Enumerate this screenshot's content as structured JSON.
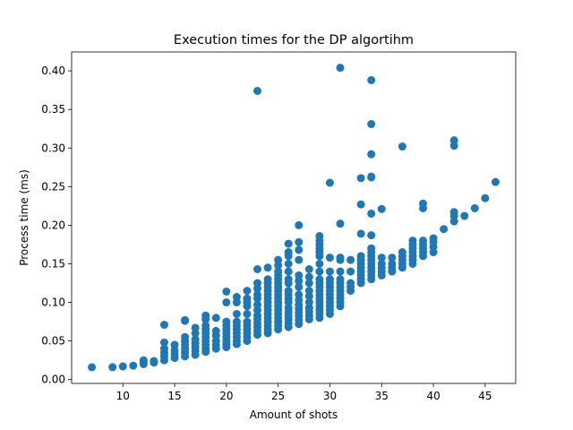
{
  "chart_data": {
    "type": "scatter",
    "title": "Execution times for the DP algortihm",
    "xlabel": "Amount of shots",
    "ylabel": "Process time (ms)",
    "xlim": [
      5.05,
      47.95
    ],
    "ylim": [
      -0.005,
      0.4245
    ],
    "xticks": [
      10,
      15,
      20,
      25,
      30,
      35,
      40,
      45
    ],
    "yticks": [
      0.0,
      0.05,
      0.1,
      0.15,
      0.2,
      0.25,
      0.3,
      0.35,
      0.4
    ],
    "grid": false,
    "marker_color": "#1f77b4",
    "points": [
      [
        7,
        0.016
      ],
      [
        9,
        0.016
      ],
      [
        10,
        0.017
      ],
      [
        11,
        0.018
      ],
      [
        12,
        0.02
      ],
      [
        12,
        0.022
      ],
      [
        12,
        0.025
      ],
      [
        13,
        0.022
      ],
      [
        13,
        0.024
      ],
      [
        14,
        0.025
      ],
      [
        14,
        0.03
      ],
      [
        14,
        0.035
      ],
      [
        14,
        0.04
      ],
      [
        14,
        0.048
      ],
      [
        14,
        0.071
      ],
      [
        15,
        0.028
      ],
      [
        15,
        0.033
      ],
      [
        15,
        0.038
      ],
      [
        15,
        0.045
      ],
      [
        16,
        0.03
      ],
      [
        16,
        0.035
      ],
      [
        16,
        0.04
      ],
      [
        16,
        0.045
      ],
      [
        16,
        0.05
      ],
      [
        16,
        0.055
      ],
      [
        16,
        0.076
      ],
      [
        16,
        0.077
      ],
      [
        17,
        0.032
      ],
      [
        17,
        0.037
      ],
      [
        17,
        0.042
      ],
      [
        17,
        0.047
      ],
      [
        17,
        0.052
      ],
      [
        17,
        0.06
      ],
      [
        17,
        0.067
      ],
      [
        18,
        0.036
      ],
      [
        18,
        0.04
      ],
      [
        18,
        0.045
      ],
      [
        18,
        0.05
      ],
      [
        18,
        0.055
      ],
      [
        18,
        0.06
      ],
      [
        18,
        0.065
      ],
      [
        18,
        0.07
      ],
      [
        18,
        0.078
      ],
      [
        18,
        0.083
      ],
      [
        19,
        0.04
      ],
      [
        19,
        0.045
      ],
      [
        19,
        0.05
      ],
      [
        19,
        0.057
      ],
      [
        19,
        0.063
      ],
      [
        19,
        0.08
      ],
      [
        20,
        0.042
      ],
      [
        20,
        0.046
      ],
      [
        20,
        0.05
      ],
      [
        20,
        0.055
      ],
      [
        20,
        0.06
      ],
      [
        20,
        0.065
      ],
      [
        20,
        0.07
      ],
      [
        20,
        0.075
      ],
      [
        20,
        0.1
      ],
      [
        20,
        0.114
      ],
      [
        21,
        0.046
      ],
      [
        21,
        0.05
      ],
      [
        21,
        0.055
      ],
      [
        21,
        0.06
      ],
      [
        21,
        0.065
      ],
      [
        21,
        0.07
      ],
      [
        21,
        0.075
      ],
      [
        21,
        0.085
      ],
      [
        21,
        0.1
      ],
      [
        21,
        0.107
      ],
      [
        22,
        0.05
      ],
      [
        22,
        0.055
      ],
      [
        22,
        0.06
      ],
      [
        22,
        0.065
      ],
      [
        22,
        0.07
      ],
      [
        22,
        0.075
      ],
      [
        22,
        0.085
      ],
      [
        22,
        0.095
      ],
      [
        22,
        0.1
      ],
      [
        22,
        0.105
      ],
      [
        22,
        0.115
      ],
      [
        23,
        0.058
      ],
      [
        23,
        0.063
      ],
      [
        23,
        0.068
      ],
      [
        23,
        0.073
      ],
      [
        23,
        0.078
      ],
      [
        23,
        0.083
      ],
      [
        23,
        0.09
      ],
      [
        23,
        0.097
      ],
      [
        23,
        0.105
      ],
      [
        23,
        0.11
      ],
      [
        23,
        0.118
      ],
      [
        23,
        0.125
      ],
      [
        23,
        0.143
      ],
      [
        23,
        0.374
      ],
      [
        24,
        0.06
      ],
      [
        24,
        0.065
      ],
      [
        24,
        0.07
      ],
      [
        24,
        0.075
      ],
      [
        24,
        0.08
      ],
      [
        24,
        0.085
      ],
      [
        24,
        0.09
      ],
      [
        24,
        0.095
      ],
      [
        24,
        0.1
      ],
      [
        24,
        0.105
      ],
      [
        24,
        0.11
      ],
      [
        24,
        0.115
      ],
      [
        24,
        0.12
      ],
      [
        24,
        0.125
      ],
      [
        24,
        0.13
      ],
      [
        24,
        0.145
      ],
      [
        25,
        0.065
      ],
      [
        25,
        0.07
      ],
      [
        25,
        0.075
      ],
      [
        25,
        0.08
      ],
      [
        25,
        0.085
      ],
      [
        25,
        0.09
      ],
      [
        25,
        0.095
      ],
      [
        25,
        0.1
      ],
      [
        25,
        0.105
      ],
      [
        25,
        0.11
      ],
      [
        25,
        0.115
      ],
      [
        25,
        0.12
      ],
      [
        25,
        0.125
      ],
      [
        25,
        0.13
      ],
      [
        25,
        0.135
      ],
      [
        25,
        0.14
      ],
      [
        25,
        0.148
      ],
      [
        25,
        0.155
      ],
      [
        26,
        0.068
      ],
      [
        26,
        0.073
      ],
      [
        26,
        0.078
      ],
      [
        26,
        0.083
      ],
      [
        26,
        0.088
      ],
      [
        26,
        0.093
      ],
      [
        26,
        0.1
      ],
      [
        26,
        0.105
      ],
      [
        26,
        0.11
      ],
      [
        26,
        0.115
      ],
      [
        26,
        0.125
      ],
      [
        26,
        0.13
      ],
      [
        26,
        0.14
      ],
      [
        26,
        0.15
      ],
      [
        26,
        0.16
      ],
      [
        26,
        0.165
      ],
      [
        26,
        0.176
      ],
      [
        27,
        0.072
      ],
      [
        27,
        0.077
      ],
      [
        27,
        0.082
      ],
      [
        27,
        0.087
      ],
      [
        27,
        0.092
      ],
      [
        27,
        0.097
      ],
      [
        27,
        0.103
      ],
      [
        27,
        0.11
      ],
      [
        27,
        0.12
      ],
      [
        27,
        0.128
      ],
      [
        27,
        0.135
      ],
      [
        27,
        0.155
      ],
      [
        27,
        0.168
      ],
      [
        27,
        0.178
      ],
      [
        27,
        0.2
      ],
      [
        28,
        0.078
      ],
      [
        28,
        0.083
      ],
      [
        28,
        0.088
      ],
      [
        28,
        0.093
      ],
      [
        28,
        0.1
      ],
      [
        28,
        0.108
      ],
      [
        28,
        0.115
      ],
      [
        28,
        0.125
      ],
      [
        28,
        0.133
      ],
      [
        28,
        0.143
      ],
      [
        29,
        0.08
      ],
      [
        29,
        0.085
      ],
      [
        29,
        0.09
      ],
      [
        29,
        0.095
      ],
      [
        29,
        0.1
      ],
      [
        29,
        0.105
      ],
      [
        29,
        0.11
      ],
      [
        29,
        0.115
      ],
      [
        29,
        0.12
      ],
      [
        29,
        0.125
      ],
      [
        29,
        0.13
      ],
      [
        29,
        0.14
      ],
      [
        29,
        0.15
      ],
      [
        29,
        0.16
      ],
      [
        29,
        0.165
      ],
      [
        29,
        0.17
      ],
      [
        29,
        0.175
      ],
      [
        29,
        0.18
      ],
      [
        29,
        0.186
      ],
      [
        30,
        0.085
      ],
      [
        30,
        0.09
      ],
      [
        30,
        0.095
      ],
      [
        30,
        0.1
      ],
      [
        30,
        0.105
      ],
      [
        30,
        0.11
      ],
      [
        30,
        0.115
      ],
      [
        30,
        0.12
      ],
      [
        30,
        0.125
      ],
      [
        30,
        0.13
      ],
      [
        30,
        0.14
      ],
      [
        30,
        0.158
      ],
      [
        30,
        0.255
      ],
      [
        31,
        0.095
      ],
      [
        31,
        0.1
      ],
      [
        31,
        0.105
      ],
      [
        31,
        0.11
      ],
      [
        31,
        0.115
      ],
      [
        31,
        0.12
      ],
      [
        31,
        0.125
      ],
      [
        31,
        0.13
      ],
      [
        31,
        0.14
      ],
      [
        31,
        0.155
      ],
      [
        31,
        0.158
      ],
      [
        31,
        0.202
      ],
      [
        31,
        0.404
      ],
      [
        32,
        0.115
      ],
      [
        32,
        0.12
      ],
      [
        32,
        0.125
      ],
      [
        32,
        0.14
      ],
      [
        32,
        0.155
      ],
      [
        33,
        0.125
      ],
      [
        33,
        0.13
      ],
      [
        33,
        0.135
      ],
      [
        33,
        0.14
      ],
      [
        33,
        0.145
      ],
      [
        33,
        0.15
      ],
      [
        33,
        0.155
      ],
      [
        33,
        0.16
      ],
      [
        33,
        0.189
      ],
      [
        33,
        0.227
      ],
      [
        33,
        0.261
      ],
      [
        34,
        0.13
      ],
      [
        34,
        0.135
      ],
      [
        34,
        0.14
      ],
      [
        34,
        0.145
      ],
      [
        34,
        0.15
      ],
      [
        34,
        0.155
      ],
      [
        34,
        0.16
      ],
      [
        34,
        0.165
      ],
      [
        34,
        0.17
      ],
      [
        34,
        0.187
      ],
      [
        34,
        0.215
      ],
      [
        34,
        0.262
      ],
      [
        34,
        0.263
      ],
      [
        34,
        0.292
      ],
      [
        34,
        0.331
      ],
      [
        34,
        0.388
      ],
      [
        35,
        0.135
      ],
      [
        35,
        0.14
      ],
      [
        35,
        0.145
      ],
      [
        35,
        0.15
      ],
      [
        35,
        0.158
      ],
      [
        35,
        0.221
      ],
      [
        36,
        0.14
      ],
      [
        36,
        0.145
      ],
      [
        36,
        0.15
      ],
      [
        36,
        0.158
      ],
      [
        37,
        0.145
      ],
      [
        37,
        0.15
      ],
      [
        37,
        0.155
      ],
      [
        37,
        0.16
      ],
      [
        37,
        0.165
      ],
      [
        37,
        0.302
      ],
      [
        38,
        0.15
      ],
      [
        38,
        0.155
      ],
      [
        38,
        0.16
      ],
      [
        38,
        0.165
      ],
      [
        38,
        0.17
      ],
      [
        38,
        0.175
      ],
      [
        38,
        0.18
      ],
      [
        39,
        0.16
      ],
      [
        39,
        0.165
      ],
      [
        39,
        0.17
      ],
      [
        39,
        0.175
      ],
      [
        39,
        0.18
      ],
      [
        39,
        0.222
      ],
      [
        39,
        0.228
      ],
      [
        40,
        0.165
      ],
      [
        40,
        0.172
      ],
      [
        40,
        0.178
      ],
      [
        40,
        0.183
      ],
      [
        41,
        0.195
      ],
      [
        42,
        0.205
      ],
      [
        42,
        0.212
      ],
      [
        42,
        0.217
      ],
      [
        42,
        0.303
      ],
      [
        42,
        0.31
      ],
      [
        43,
        0.212
      ],
      [
        44,
        0.222
      ],
      [
        45,
        0.235
      ],
      [
        46,
        0.256
      ]
    ]
  }
}
